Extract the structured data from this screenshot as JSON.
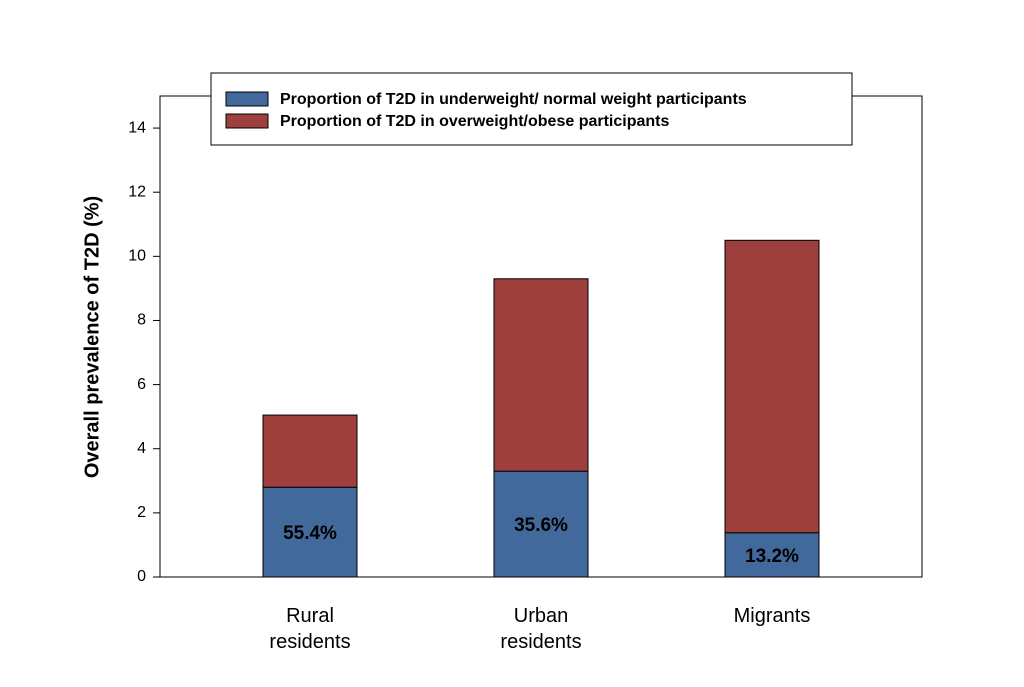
{
  "chart_data": {
    "type": "stacked_bar",
    "y_label": "Overall prevalence of T2D (%)",
    "categories": [
      "Rural residents",
      "Urban residents",
      "Migrants"
    ],
    "series": [
      {
        "name": "Proportion of T2D in underweight/ normal weight participants",
        "color": "#41699b",
        "values": [
          2.8,
          3.3,
          1.38
        ],
        "annotations": [
          "55.4%",
          "35.6%",
          "13.2%"
        ]
      },
      {
        "name": "Proportion of T2D in overweight/obese participants",
        "color": "#9c3f3d",
        "values": [
          2.25,
          6.0,
          9.12
        ]
      }
    ],
    "ylim": [
      0,
      15
    ],
    "yticks": [
      0,
      2,
      4,
      6,
      8,
      10,
      12,
      14
    ],
    "grid": false
  }
}
